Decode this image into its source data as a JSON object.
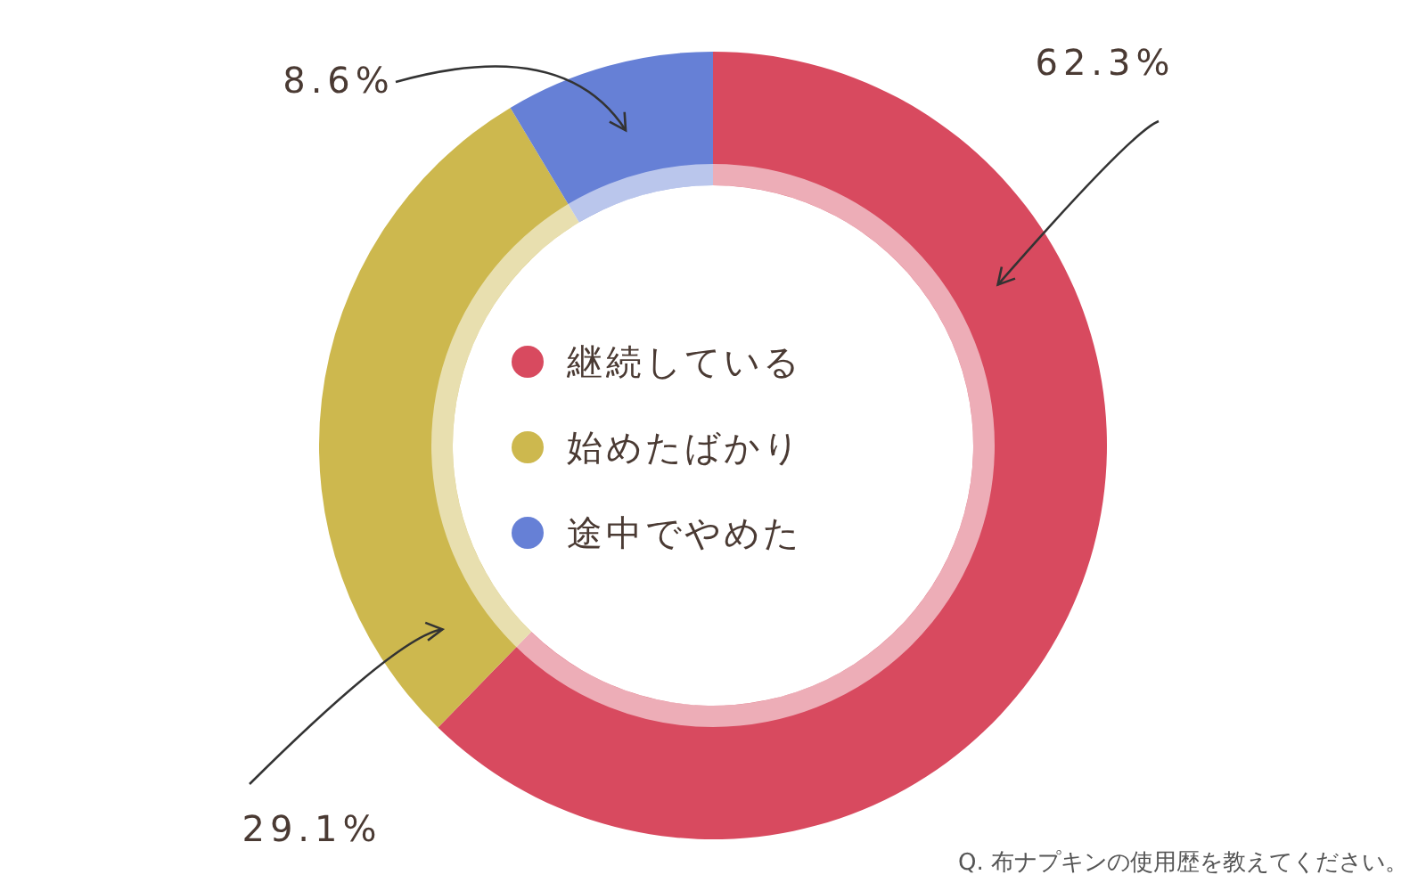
{
  "chart_data": {
    "type": "donut",
    "categories": [
      "継続している",
      "始めたばかり",
      "途中でやめた"
    ],
    "values": [
      62.3,
      29.1,
      8.6
    ],
    "colors": [
      "#d84a5f",
      "#cdb84e",
      "#6680d6"
    ],
    "value_labels": [
      "62.3%",
      "29.1%",
      "8.6%"
    ],
    "legend": "center",
    "annotations": [
      "Q. 布ナプキンの使用歴を教えてください。"
    ]
  }
}
